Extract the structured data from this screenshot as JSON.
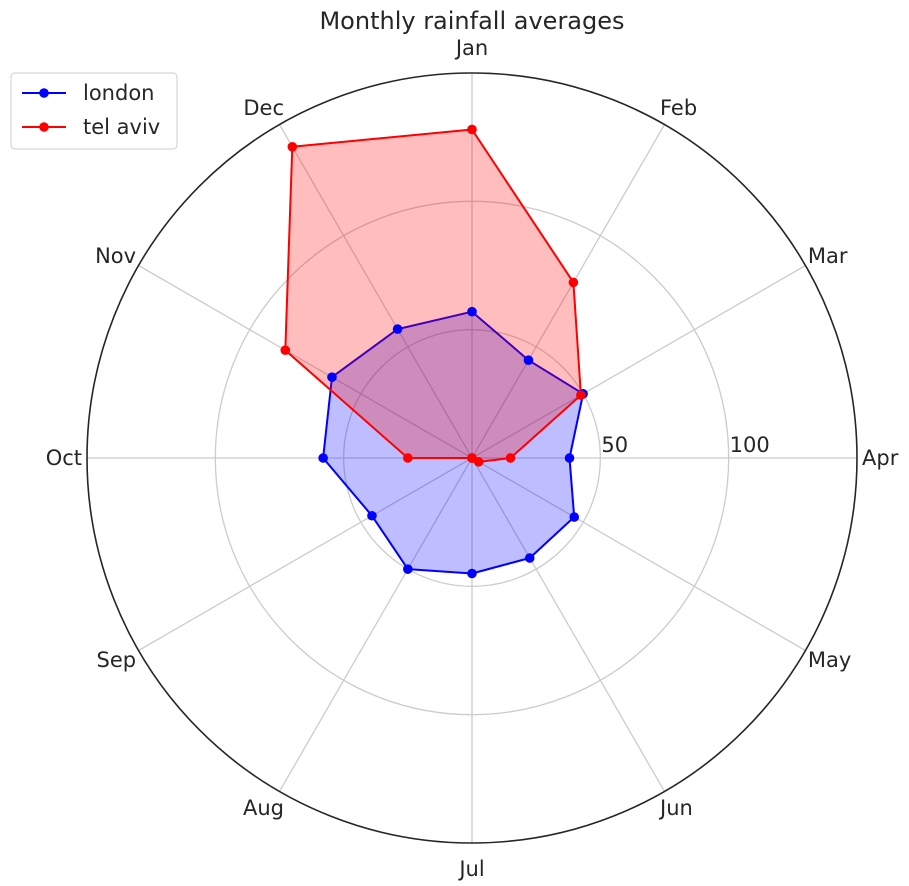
{
  "chart_data": {
    "type": "radar",
    "title": "Monthly rainfall averages",
    "categories": [
      "Jan",
      "Feb",
      "Mar",
      "Apr",
      "May",
      "Jun",
      "Jul",
      "Aug",
      "Sep",
      "Oct",
      "Nov",
      "Dec"
    ],
    "rlim": [
      0,
      150
    ],
    "rticks": [
      50,
      100
    ],
    "rtick_labels": [
      "50",
      "100"
    ],
    "grid": true,
    "legend_position": "top-left",
    "series": [
      {
        "name": "london",
        "color": "#0000ff",
        "fill": "#0000ff",
        "values": [
          57,
          44,
          50,
          38,
          46,
          45,
          45,
          50,
          45,
          58,
          63,
          58
        ]
      },
      {
        "name": "tel aviv",
        "color": "#ff0000",
        "fill": "#ff0000",
        "values": [
          128,
          79,
          49,
          15,
          3,
          0,
          0,
          0,
          0,
          25,
          84,
          140
        ]
      }
    ]
  }
}
